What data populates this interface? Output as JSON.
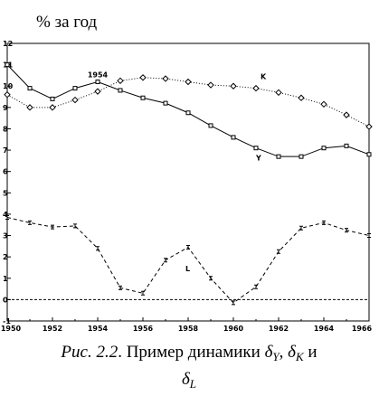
{
  "chart_data": {
    "type": "line",
    "title": "% за год",
    "x": [
      1950,
      1951,
      1952,
      1953,
      1954,
      1955,
      1956,
      1957,
      1958,
      1959,
      1960,
      1961,
      1962,
      1963,
      1964,
      1965,
      1966
    ],
    "series": [
      {
        "name": "Y",
        "color": "#000000",
        "style": "solid",
        "marker": "square",
        "values": [
          11.0,
          9.9,
          9.4,
          9.9,
          10.2,
          9.8,
          9.45,
          9.2,
          8.75,
          8.15,
          7.6,
          7.1,
          6.7,
          6.7,
          7.1,
          7.2,
          6.8
        ]
      },
      {
        "name": "K",
        "color": "#000000",
        "style": "dotted",
        "marker": "diamond",
        "values": [
          9.6,
          9.0,
          9.0,
          9.35,
          9.75,
          10.25,
          10.4,
          10.35,
          10.2,
          10.05,
          10.0,
          9.9,
          9.7,
          9.45,
          9.15,
          8.65,
          8.1
        ]
      },
      {
        "name": "L",
        "color": "#000000",
        "style": "dashed",
        "marker": "bar",
        "values": [
          3.85,
          3.6,
          3.4,
          3.45,
          2.4,
          0.55,
          0.3,
          1.85,
          2.45,
          1.0,
          -0.15,
          0.6,
          2.25,
          3.35,
          3.6,
          3.25,
          3.0
        ]
      }
    ],
    "annotations": [
      {
        "text": "1954",
        "x": 1954,
        "series": 0
      }
    ],
    "hlines": [
      0
    ],
    "xlim": [
      1950,
      1966
    ],
    "xticks": [
      1950,
      1952,
      1954,
      1956,
      1958,
      1960,
      1962,
      1964,
      1966
    ],
    "ylim": [
      -1,
      12
    ],
    "yticks": [
      -1,
      0,
      1,
      2,
      3,
      4,
      5,
      6,
      7,
      8,
      9,
      10,
      11,
      12
    ],
    "caption": {
      "lines": [
        [
          {
            "text": "Рис. 2.2",
            "italic": true
          },
          {
            "text": ". Пример динамики "
          },
          {
            "text": "δ",
            "italic": true
          },
          {
            "text": "Y",
            "italic": true,
            "sub": true
          },
          {
            "text": ", "
          },
          {
            "text": "δ",
            "italic": true
          },
          {
            "text": "K",
            "italic": true,
            "sub": true
          },
          {
            "text": " и"
          }
        ],
        [
          {
            "text": "δ",
            "italic": true
          },
          {
            "text": "L",
            "italic": true,
            "sub": true
          }
        ]
      ]
    }
  }
}
